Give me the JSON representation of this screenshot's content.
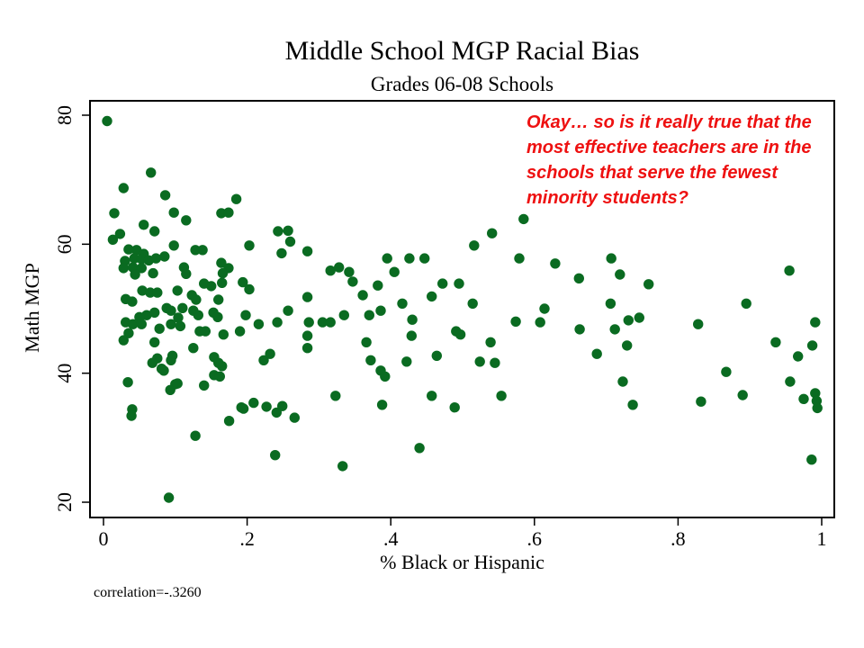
{
  "page": {
    "background": "#ffffff"
  },
  "chart_data": {
    "type": "scatter",
    "title": "Middle School MGP Racial Bias",
    "subtitle": "Grades 06-08 Schools",
    "xlabel": "% Black or Hispanic",
    "ylabel": "Math MGP",
    "xlim": [
      0,
      1
    ],
    "ylim": [
      20,
      80
    ],
    "grid": false,
    "legend": "none",
    "marker_color": "#0a6b21",
    "frame_color": "#000000",
    "xticks": {
      "values": [
        0,
        0.2,
        0.4,
        0.6,
        0.8,
        1
      ],
      "labels": [
        "0",
        ".2",
        ".4",
        ".6",
        ".8",
        "1"
      ]
    },
    "yticks": {
      "values": [
        20,
        40,
        60,
        80
      ],
      "labels": [
        "20",
        "40",
        "60",
        "80"
      ]
    },
    "points": [
      [
        0.005,
        79.1
      ],
      [
        0.066,
        71.1
      ],
      [
        0.028,
        68.7
      ],
      [
        0.086,
        67.6
      ],
      [
        0.185,
        67.0
      ],
      [
        0.015,
        64.8
      ],
      [
        0.098,
        64.9
      ],
      [
        0.164,
        64.8
      ],
      [
        0.174,
        64.9
      ],
      [
        0.115,
        63.7
      ],
      [
        0.056,
        63.0
      ],
      [
        0.071,
        62.0
      ],
      [
        0.013,
        60.7
      ],
      [
        0.023,
        61.6
      ],
      [
        0.243,
        62.0
      ],
      [
        0.257,
        62.1
      ],
      [
        0.26,
        60.4
      ],
      [
        0.248,
        58.6
      ],
      [
        0.203,
        59.8
      ],
      [
        0.098,
        59.8
      ],
      [
        0.128,
        59.1
      ],
      [
        0.138,
        59.1
      ],
      [
        0.284,
        58.9
      ],
      [
        0.035,
        59.2
      ],
      [
        0.046,
        59.1
      ],
      [
        0.056,
        58.5
      ],
      [
        0.043,
        57.8
      ],
      [
        0.053,
        57.7
      ],
      [
        0.063,
        57.5
      ],
      [
        0.073,
        57.8
      ],
      [
        0.085,
        58.1
      ],
      [
        0.03,
        57.4
      ],
      [
        0.028,
        56.3
      ],
      [
        0.041,
        56.4
      ],
      [
        0.053,
        56.3
      ],
      [
        0.044,
        55.3
      ],
      [
        0.112,
        56.4
      ],
      [
        0.115,
        55.4
      ],
      [
        0.164,
        57.1
      ],
      [
        0.174,
        56.3
      ],
      [
        0.166,
        55.5
      ],
      [
        0.165,
        54.0
      ],
      [
        0.194,
        54.1
      ],
      [
        0.203,
        53.0
      ],
      [
        0.14,
        53.9
      ],
      [
        0.15,
        53.5
      ],
      [
        0.069,
        55.5
      ],
      [
        0.054,
        52.8
      ],
      [
        0.065,
        52.5
      ],
      [
        0.075,
        52.5
      ],
      [
        0.031,
        51.5
      ],
      [
        0.04,
        51.1
      ],
      [
        0.103,
        52.8
      ],
      [
        0.123,
        52.1
      ],
      [
        0.129,
        51.4
      ],
      [
        0.16,
        51.4
      ],
      [
        0.088,
        50.1
      ],
      [
        0.094,
        49.7
      ],
      [
        0.071,
        49.4
      ],
      [
        0.06,
        49.0
      ],
      [
        0.05,
        48.7
      ],
      [
        0.11,
        50.1
      ],
      [
        0.125,
        49.7
      ],
      [
        0.132,
        49.0
      ],
      [
        0.153,
        49.4
      ],
      [
        0.159,
        48.7
      ],
      [
        0.198,
        49.0
      ],
      [
        0.031,
        47.9
      ],
      [
        0.041,
        47.6
      ],
      [
        0.053,
        47.6
      ],
      [
        0.104,
        48.6
      ],
      [
        0.107,
        47.3
      ],
      [
        0.094,
        47.6
      ],
      [
        0.035,
        46.2
      ],
      [
        0.078,
        46.9
      ],
      [
        0.134,
        46.5
      ],
      [
        0.142,
        46.5
      ],
      [
        0.167,
        46.0
      ],
      [
        0.19,
        46.5
      ],
      [
        0.216,
        47.6
      ],
      [
        0.028,
        45.1
      ],
      [
        0.071,
        44.8
      ],
      [
        0.096,
        42.7
      ],
      [
        0.075,
        42.3
      ],
      [
        0.125,
        43.9
      ],
      [
        0.154,
        42.5
      ],
      [
        0.165,
        41.1
      ],
      [
        0.081,
        40.7
      ],
      [
        0.034,
        38.6
      ],
      [
        0.14,
        38.1
      ],
      [
        0.154,
        39.7
      ],
      [
        0.04,
        34.4
      ],
      [
        0.192,
        34.7
      ],
      [
        0.209,
        35.4
      ],
      [
        0.1,
        38.3
      ],
      [
        0.068,
        41.6
      ],
      [
        0.084,
        40.4
      ],
      [
        0.094,
        42.0
      ],
      [
        0.093,
        37.4
      ],
      [
        0.103,
        38.4
      ],
      [
        0.16,
        41.6
      ],
      [
        0.162,
        39.5
      ],
      [
        0.223,
        42.0
      ],
      [
        0.039,
        33.4
      ],
      [
        0.091,
        20.7
      ],
      [
        0.128,
        30.3
      ],
      [
        0.175,
        32.6
      ],
      [
        0.195,
        34.5
      ],
      [
        0.227,
        34.8
      ],
      [
        0.249,
        34.9
      ],
      [
        0.241,
        33.9
      ],
      [
        0.266,
        33.1
      ],
      [
        0.323,
        36.5
      ],
      [
        0.333,
        25.6
      ],
      [
        0.239,
        27.3
      ],
      [
        0.585,
        63.9
      ],
      [
        0.541,
        61.7
      ],
      [
        0.516,
        59.8
      ],
      [
        0.579,
        57.8
      ],
      [
        0.629,
        57.0
      ],
      [
        0.395,
        57.8
      ],
      [
        0.426,
        57.8
      ],
      [
        0.447,
        57.8
      ],
      [
        0.405,
        55.7
      ],
      [
        0.316,
        55.9
      ],
      [
        0.328,
        56.4
      ],
      [
        0.342,
        55.7
      ],
      [
        0.347,
        54.2
      ],
      [
        0.382,
        53.6
      ],
      [
        0.472,
        53.9
      ],
      [
        0.495,
        53.9
      ],
      [
        0.361,
        52.1
      ],
      [
        0.457,
        51.9
      ],
      [
        0.284,
        51.8
      ],
      [
        0.416,
        50.8
      ],
      [
        0.514,
        50.8
      ],
      [
        0.257,
        49.7
      ],
      [
        0.386,
        49.7
      ],
      [
        0.614,
        50.0
      ],
      [
        0.37,
        49.0
      ],
      [
        0.335,
        49.0
      ],
      [
        0.286,
        47.9
      ],
      [
        0.242,
        47.9
      ],
      [
        0.305,
        47.9
      ],
      [
        0.316,
        47.9
      ],
      [
        0.43,
        48.3
      ],
      [
        0.574,
        48.0
      ],
      [
        0.608,
        47.9
      ],
      [
        0.284,
        45.8
      ],
      [
        0.429,
        45.8
      ],
      [
        0.491,
        46.5
      ],
      [
        0.497,
        46.0
      ],
      [
        0.539,
        44.8
      ],
      [
        0.284,
        43.9
      ],
      [
        0.366,
        44.8
      ],
      [
        0.232,
        43.0
      ],
      [
        0.372,
        42.0
      ],
      [
        0.464,
        42.7
      ],
      [
        0.422,
        41.8
      ],
      [
        0.524,
        41.8
      ],
      [
        0.545,
        41.6
      ],
      [
        0.386,
        40.4
      ],
      [
        0.392,
        39.5
      ],
      [
        0.457,
        36.5
      ],
      [
        0.554,
        36.5
      ],
      [
        0.388,
        35.1
      ],
      [
        0.489,
        34.7
      ],
      [
        0.44,
        28.4
      ],
      [
        0.707,
        57.8
      ],
      [
        0.719,
        55.3
      ],
      [
        0.662,
        54.7
      ],
      [
        0.759,
        53.8
      ],
      [
        0.955,
        55.9
      ],
      [
        0.706,
        50.8
      ],
      [
        0.895,
        50.8
      ],
      [
        0.731,
        48.2
      ],
      [
        0.746,
        48.6
      ],
      [
        0.712,
        46.8
      ],
      [
        0.663,
        46.8
      ],
      [
        0.828,
        47.6
      ],
      [
        0.991,
        47.9
      ],
      [
        0.687,
        43.0
      ],
      [
        0.729,
        44.3
      ],
      [
        0.936,
        44.8
      ],
      [
        0.987,
        44.3
      ],
      [
        0.967,
        42.6
      ],
      [
        0.867,
        40.2
      ],
      [
        0.723,
        38.7
      ],
      [
        0.956,
        38.7
      ],
      [
        0.89,
        36.6
      ],
      [
        0.832,
        35.6
      ],
      [
        0.737,
        35.1
      ],
      [
        0.975,
        36.0
      ],
      [
        0.991,
        36.9
      ],
      [
        0.993,
        35.7
      ],
      [
        0.994,
        34.6
      ],
      [
        0.986,
        26.6
      ]
    ]
  },
  "annotation": {
    "color": "#ee1111",
    "lines": [
      "Okay… so is it really true that the",
      "most effective teachers are in the",
      "schools that serve the fewest",
      "minority students?"
    ]
  },
  "note": {
    "correlation_label": "correlation=-.3260"
  }
}
